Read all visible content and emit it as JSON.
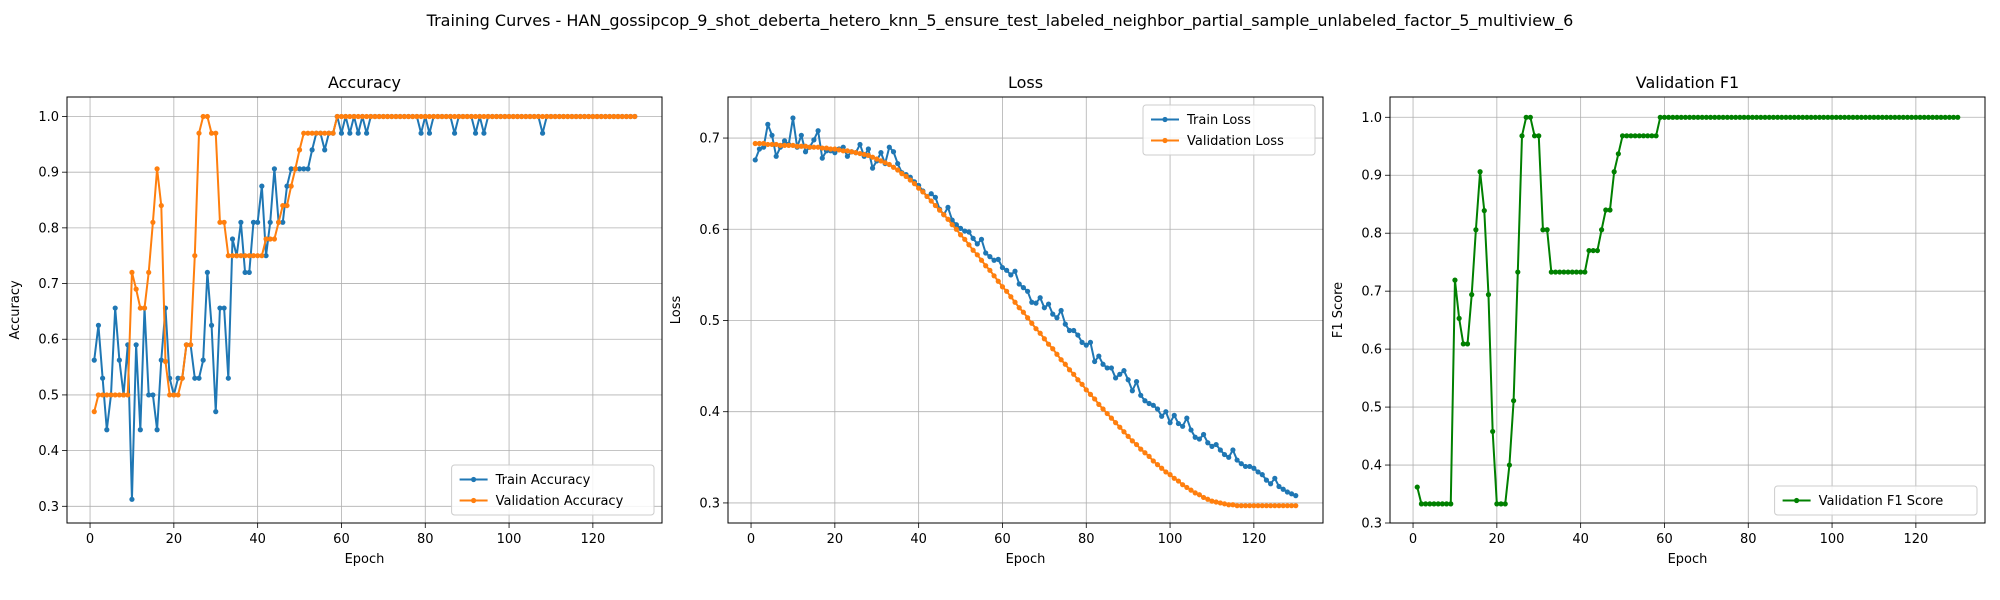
{
  "title": "Training Curves - HAN_gossipcop_9_shot_deberta_hetero_knn_5_ensure_test_labeled_neighbor_partial_sample_unlabeled_factor_5_multiview_6",
  "colors": {
    "train": "#1f77b4",
    "validation": "#ff7f0e",
    "f1": "#008000",
    "grid": "#b0b0b0"
  },
  "chart_data": [
    {
      "type": "line",
      "title": "Accuracy",
      "xlabel": "Epoch",
      "ylabel": "Accuracy",
      "xlim": [
        -5.5,
        136.5
      ],
      "ylim": [
        0.27,
        1.035
      ],
      "xticks": [
        0,
        20,
        40,
        60,
        80,
        100,
        120
      ],
      "yticks": [
        0.3,
        0.4,
        0.5,
        0.6,
        0.7,
        0.8,
        0.9,
        1.0
      ],
      "ytick_labels": [
        "0.3",
        "0.4",
        "0.5",
        "0.6",
        "0.7",
        "0.8",
        "0.9",
        "1.0"
      ],
      "grid": true,
      "legend_position": "lower-right",
      "series": [
        {
          "name": "Train Accuracy",
          "color": "#1f77b4",
          "x_start": 1,
          "values": [
            0.5625,
            0.625,
            0.53,
            0.4375,
            0.5,
            0.656,
            0.5625,
            0.5,
            0.59,
            0.3125,
            0.59,
            0.4375,
            0.656,
            0.5,
            0.5,
            0.4375,
            0.5625,
            0.656,
            0.53,
            0.5,
            0.53,
            0.53,
            0.59,
            0.59,
            0.53,
            0.53,
            0.5625,
            0.72,
            0.625,
            0.47,
            0.656,
            0.656,
            0.53,
            0.78,
            0.75,
            0.81,
            0.72,
            0.72,
            0.81,
            0.81,
            0.875,
            0.75,
            0.81,
            0.906,
            0.81,
            0.81,
            0.875,
            0.906,
            0.906,
            0.906,
            0.906,
            0.906,
            0.94,
            0.97,
            0.97,
            0.94,
            0.97,
            0.97,
            1.0,
            0.97,
            1.0,
            0.97,
            1.0,
            0.97,
            1.0,
            0.97,
            1.0,
            1.0,
            1.0,
            1.0,
            1.0,
            1.0,
            1.0,
            1.0,
            1.0,
            1.0,
            1.0,
            1.0,
            0.97,
            1.0,
            0.97,
            1.0,
            1.0,
            1.0,
            1.0,
            1.0,
            0.97,
            1.0,
            1.0,
            1.0,
            1.0,
            0.97,
            1.0,
            0.97,
            1.0,
            1.0,
            1.0,
            1.0,
            1.0,
            1.0,
            1.0,
            1.0,
            1.0,
            1.0,
            1.0,
            1.0,
            1.0,
            0.97,
            1.0,
            1.0,
            1.0,
            1.0,
            1.0,
            1.0,
            1.0,
            1.0,
            1.0,
            1.0,
            1.0,
            1.0,
            1.0,
            1.0,
            1.0,
            1.0,
            1.0,
            1.0,
            1.0,
            1.0,
            1.0,
            1.0
          ]
        },
        {
          "name": "Validation Accuracy",
          "color": "#ff7f0e",
          "x_start": 1,
          "values": [
            0.47,
            0.5,
            0.5,
            0.5,
            0.5,
            0.5,
            0.5,
            0.5,
            0.5,
            0.72,
            0.69,
            0.656,
            0.656,
            0.72,
            0.81,
            0.906,
            0.84,
            0.56,
            0.5,
            0.5,
            0.5,
            0.53,
            0.59,
            0.59,
            0.75,
            0.97,
            1.0,
            1.0,
            0.97,
            0.97,
            0.81,
            0.81,
            0.75,
            0.75,
            0.75,
            0.75,
            0.75,
            0.75,
            0.75,
            0.75,
            0.75,
            0.78,
            0.78,
            0.78,
            0.81,
            0.84,
            0.84,
            0.875,
            0.906,
            0.94,
            0.97,
            0.97,
            0.97,
            0.97,
            0.97,
            0.97,
            0.97,
            0.97,
            1.0,
            1.0,
            1.0,
            1.0,
            1.0,
            1.0,
            1.0,
            1.0,
            1.0,
            1.0,
            1.0,
            1.0,
            1.0,
            1.0,
            1.0,
            1.0,
            1.0,
            1.0,
            1.0,
            1.0,
            1.0,
            1.0,
            1.0,
            1.0,
            1.0,
            1.0,
            1.0,
            1.0,
            1.0,
            1.0,
            1.0,
            1.0,
            1.0,
            1.0,
            1.0,
            1.0,
            1.0,
            1.0,
            1.0,
            1.0,
            1.0,
            1.0,
            1.0,
            1.0,
            1.0,
            1.0,
            1.0,
            1.0,
            1.0,
            1.0,
            1.0,
            1.0,
            1.0,
            1.0,
            1.0,
            1.0,
            1.0,
            1.0,
            1.0,
            1.0,
            1.0,
            1.0,
            1.0,
            1.0,
            1.0,
            1.0,
            1.0,
            1.0,
            1.0,
            1.0,
            1.0,
            1.0
          ]
        }
      ]
    },
    {
      "type": "line",
      "title": "Loss",
      "xlabel": "Epoch",
      "ylabel": "Loss",
      "xlim": [
        -5.5,
        136.5
      ],
      "ylim": [
        0.278,
        0.745
      ],
      "xticks": [
        0,
        20,
        40,
        60,
        80,
        100,
        120
      ],
      "yticks": [
        0.3,
        0.4,
        0.5,
        0.6,
        0.7
      ],
      "ytick_labels": [
        "0.3",
        "0.4",
        "0.5",
        "0.6",
        "0.7"
      ],
      "grid": true,
      "legend_position": "upper-right",
      "series": [
        {
          "name": "Train Loss",
          "color": "#1f77b4",
          "x_start": 1,
          "values": [
            0.676,
            0.688,
            0.69,
            0.715,
            0.703,
            0.68,
            0.69,
            0.697,
            0.693,
            0.722,
            0.69,
            0.703,
            0.685,
            0.69,
            0.698,
            0.708,
            0.678,
            0.686,
            0.686,
            0.684,
            0.688,
            0.69,
            0.68,
            0.685,
            0.684,
            0.693,
            0.68,
            0.688,
            0.667,
            0.675,
            0.684,
            0.672,
            0.69,
            0.685,
            0.672,
            0.662,
            0.66,
            0.657,
            0.652,
            0.648,
            0.642,
            0.636,
            0.639,
            0.635,
            0.622,
            0.616,
            0.624,
            0.61,
            0.605,
            0.601,
            0.598,
            0.597,
            0.59,
            0.584,
            0.589,
            0.574,
            0.57,
            0.566,
            0.567,
            0.558,
            0.555,
            0.55,
            0.554,
            0.54,
            0.536,
            0.532,
            0.52,
            0.519,
            0.525,
            0.514,
            0.518,
            0.507,
            0.503,
            0.511,
            0.496,
            0.489,
            0.489,
            0.484,
            0.476,
            0.473,
            0.476,
            0.455,
            0.461,
            0.452,
            0.448,
            0.448,
            0.437,
            0.441,
            0.445,
            0.435,
            0.423,
            0.433,
            0.418,
            0.412,
            0.409,
            0.407,
            0.403,
            0.395,
            0.4,
            0.388,
            0.396,
            0.387,
            0.384,
            0.393,
            0.38,
            0.372,
            0.37,
            0.375,
            0.366,
            0.362,
            0.364,
            0.358,
            0.353,
            0.35,
            0.358,
            0.347,
            0.343,
            0.34,
            0.34,
            0.338,
            0.334,
            0.331,
            0.325,
            0.321,
            0.327,
            0.318,
            0.315,
            0.312,
            0.31,
            0.308
          ]
        },
        {
          "name": "Validation Loss",
          "color": "#ff7f0e",
          "x_start": 1,
          "values": [
            0.694,
            0.694,
            0.694,
            0.693,
            0.693,
            0.693,
            0.692,
            0.692,
            0.692,
            0.692,
            0.691,
            0.691,
            0.691,
            0.69,
            0.69,
            0.69,
            0.689,
            0.689,
            0.688,
            0.688,
            0.687,
            0.686,
            0.686,
            0.685,
            0.684,
            0.683,
            0.682,
            0.681,
            0.679,
            0.677,
            0.675,
            0.673,
            0.671,
            0.668,
            0.665,
            0.661,
            0.658,
            0.654,
            0.65,
            0.645,
            0.641,
            0.636,
            0.631,
            0.626,
            0.621,
            0.616,
            0.611,
            0.605,
            0.6,
            0.594,
            0.589,
            0.583,
            0.577,
            0.572,
            0.566,
            0.56,
            0.555,
            0.549,
            0.543,
            0.537,
            0.532,
            0.526,
            0.52,
            0.514,
            0.509,
            0.503,
            0.497,
            0.491,
            0.486,
            0.48,
            0.474,
            0.469,
            0.463,
            0.457,
            0.452,
            0.446,
            0.441,
            0.435,
            0.43,
            0.424,
            0.419,
            0.414,
            0.408,
            0.403,
            0.398,
            0.393,
            0.388,
            0.383,
            0.378,
            0.373,
            0.368,
            0.364,
            0.359,
            0.355,
            0.351,
            0.346,
            0.342,
            0.338,
            0.334,
            0.331,
            0.327,
            0.324,
            0.32,
            0.317,
            0.314,
            0.311,
            0.309,
            0.306,
            0.304,
            0.302,
            0.301,
            0.3,
            0.299,
            0.298,
            0.298,
            0.297,
            0.297,
            0.297,
            0.297,
            0.297,
            0.297,
            0.297,
            0.297,
            0.297,
            0.297,
            0.297,
            0.297,
            0.297,
            0.297,
            0.297
          ]
        }
      ]
    },
    {
      "type": "line",
      "title": "Validation F1",
      "xlabel": "Epoch",
      "ylabel": "F1 Score",
      "xlim": [
        -5.5,
        136.5
      ],
      "ylim": [
        0.3,
        1.035
      ],
      "xticks": [
        0,
        20,
        40,
        60,
        80,
        100,
        120
      ],
      "yticks": [
        0.3,
        0.4,
        0.5,
        0.6,
        0.7,
        0.8,
        0.9,
        1.0
      ],
      "ytick_labels": [
        "0.3",
        "0.4",
        "0.5",
        "0.6",
        "0.7",
        "0.8",
        "0.9",
        "1.0"
      ],
      "grid": true,
      "legend_position": "lower-right",
      "series": [
        {
          "name": "Validation F1 Score",
          "color": "#008000",
          "x_start": 1,
          "values": [
            0.362,
            0.333,
            0.333,
            0.333,
            0.333,
            0.333,
            0.333,
            0.333,
            0.333,
            0.719,
            0.653,
            0.609,
            0.609,
            0.694,
            0.806,
            0.906,
            0.839,
            0.694,
            0.458,
            0.333,
            0.333,
            0.333,
            0.4,
            0.511,
            0.733,
            0.968,
            1.0,
            1.0,
            0.968,
            0.968,
            0.806,
            0.806,
            0.733,
            0.733,
            0.733,
            0.733,
            0.733,
            0.733,
            0.733,
            0.733,
            0.733,
            0.77,
            0.77,
            0.77,
            0.806,
            0.84,
            0.84,
            0.906,
            0.937,
            0.968,
            0.968,
            0.968,
            0.968,
            0.968,
            0.968,
            0.968,
            0.968,
            0.968,
            1.0,
            1.0,
            1.0,
            1.0,
            1.0,
            1.0,
            1.0,
            1.0,
            1.0,
            1.0,
            1.0,
            1.0,
            1.0,
            1.0,
            1.0,
            1.0,
            1.0,
            1.0,
            1.0,
            1.0,
            1.0,
            1.0,
            1.0,
            1.0,
            1.0,
            1.0,
            1.0,
            1.0,
            1.0,
            1.0,
            1.0,
            1.0,
            1.0,
            1.0,
            1.0,
            1.0,
            1.0,
            1.0,
            1.0,
            1.0,
            1.0,
            1.0,
            1.0,
            1.0,
            1.0,
            1.0,
            1.0,
            1.0,
            1.0,
            1.0,
            1.0,
            1.0,
            1.0,
            1.0,
            1.0,
            1.0,
            1.0,
            1.0,
            1.0,
            1.0,
            1.0,
            1.0,
            1.0,
            1.0,
            1.0,
            1.0,
            1.0,
            1.0,
            1.0,
            1.0,
            1.0,
            1.0
          ]
        }
      ]
    }
  ]
}
